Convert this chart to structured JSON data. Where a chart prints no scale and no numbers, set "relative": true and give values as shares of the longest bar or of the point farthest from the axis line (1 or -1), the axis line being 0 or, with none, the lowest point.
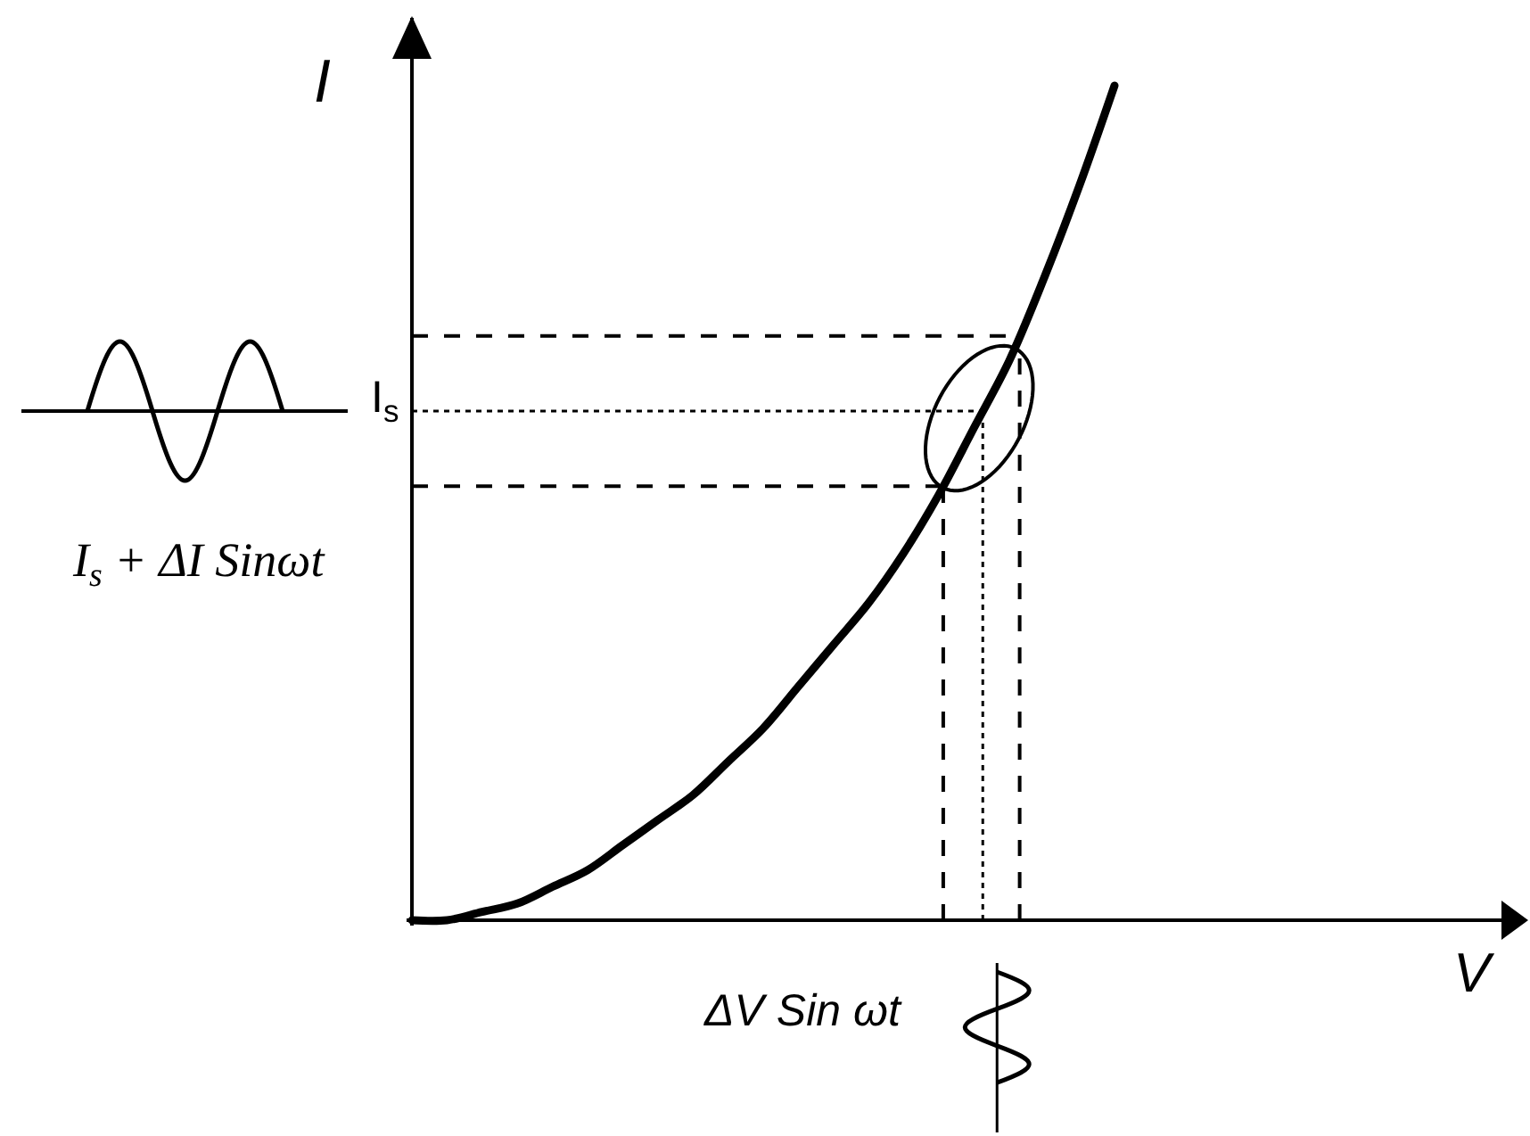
{
  "chart_data": {
    "type": "line",
    "relative": true,
    "ylabel": "I",
    "categories": [
      null,
      null,
      null,
      null,
      null,
      null,
      null,
      null,
      null,
      null,
      null,
      null,
      null,
      null,
      null,
      null,
      null,
      null,
      null,
      null,
      null
    ],
    "series": [
      {
        "color": "#000000",
        "values": [
          0,
          0,
          0.01,
          0.02,
          0.04,
          0.06,
          0.09,
          0.12,
          0.15,
          0.19,
          0.23,
          0.28,
          0.33,
          0.38,
          0.44,
          0.51,
          0.59,
          0.67,
          0.77,
          0.88,
          1.0
        ]
      }
    ],
    "ref_lines": [
      {
        "axis": "y",
        "value": 0.7,
        "line_style": "dashed",
        "color": "#000000"
      },
      {
        "axis": "y",
        "value": 0.61,
        "label": "I$_{s}$",
        "line_style": "dotted",
        "color": "#000000"
      },
      {
        "axis": "y",
        "value": 0.52,
        "line_style": "dashed",
        "color": "#000000"
      }
    ],
    "annotations": [
      "I$_{s}$ + ΔI Sinωt",
      "V",
      "ΔV Sin ωt"
    ]
  }
}
